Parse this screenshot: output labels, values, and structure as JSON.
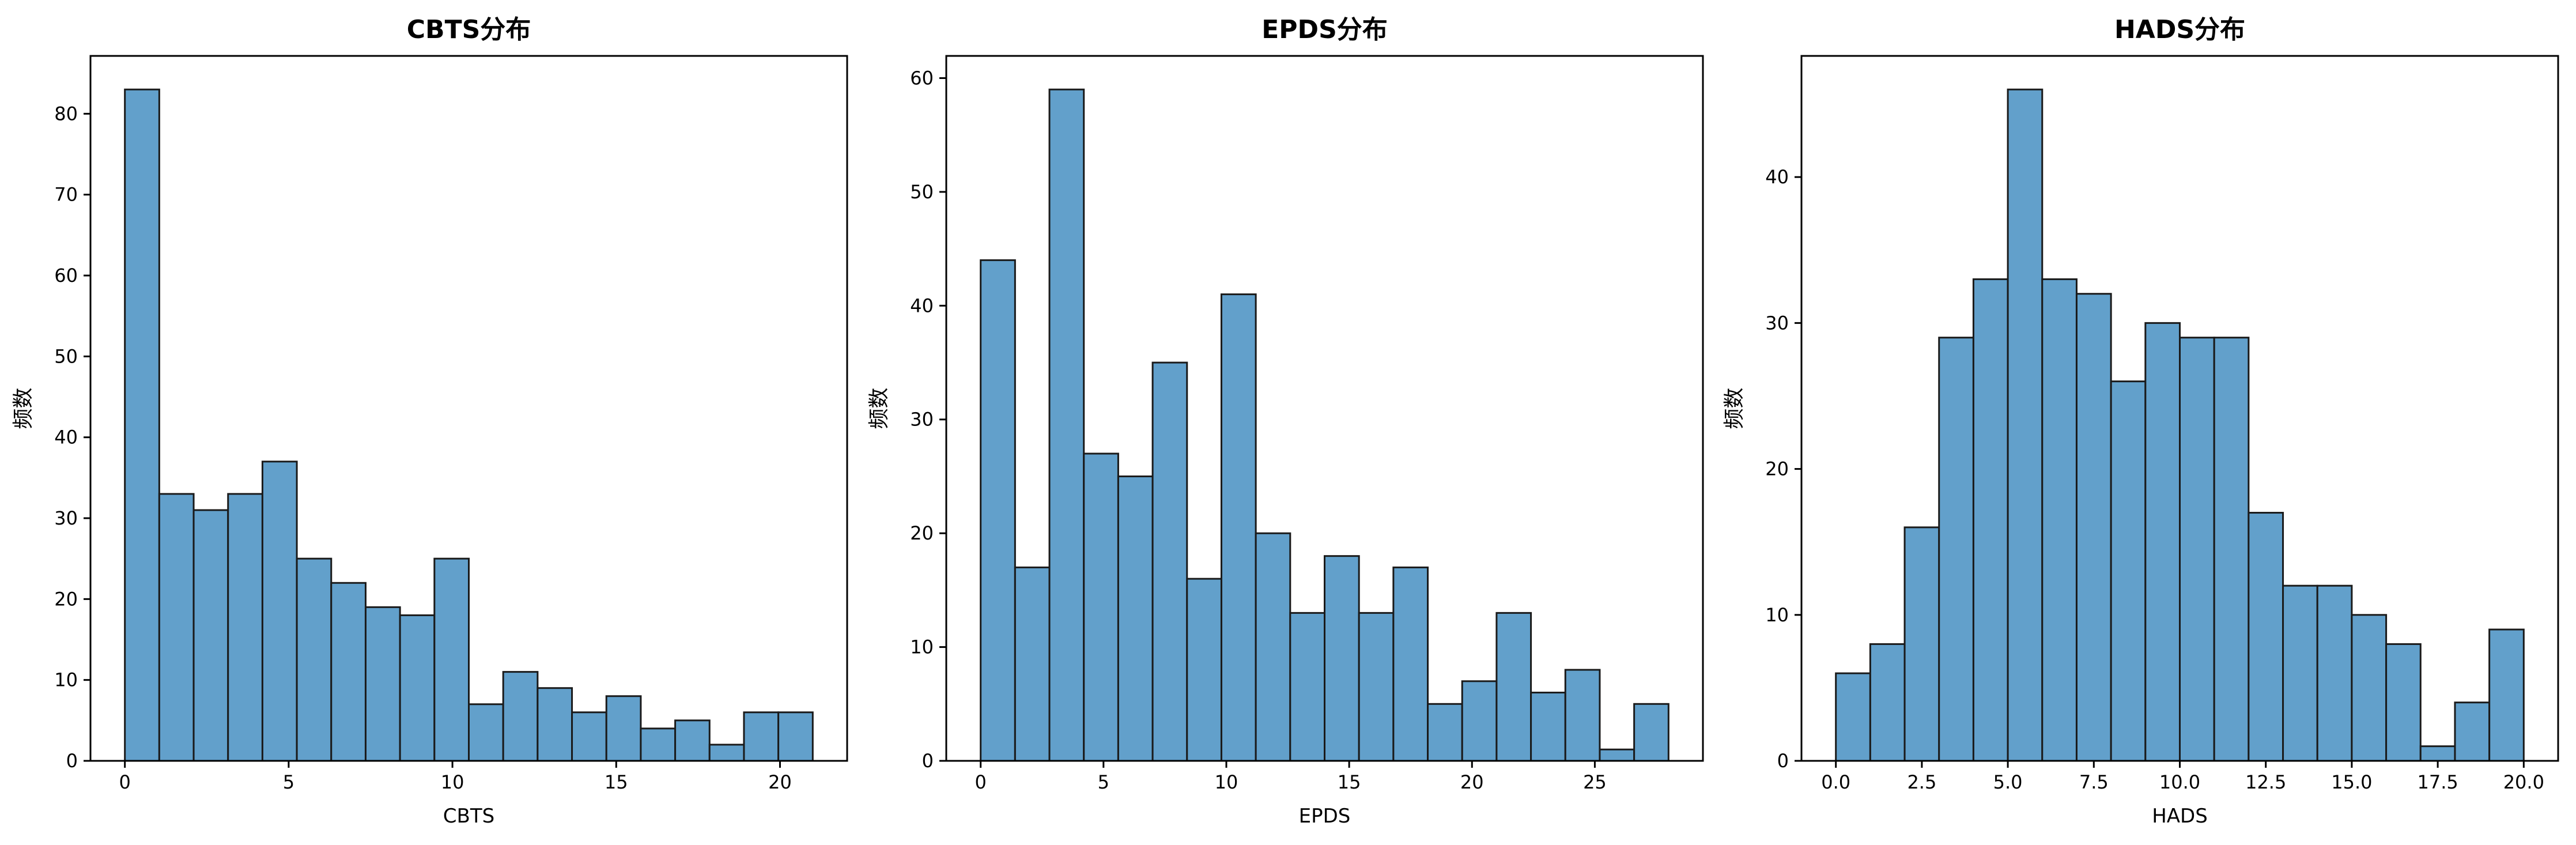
{
  "colors": {
    "bar": "#62a0cb",
    "edge": "#1a1a1a"
  },
  "chart_data": [
    {
      "type": "bar",
      "title": "CBTS分布",
      "xlabel": "CBTS",
      "ylabel": "频数",
      "bin_edges": [
        0,
        1.05,
        2.1,
        3.15,
        4.2,
        5.25,
        6.3,
        7.35,
        8.4,
        9.45,
        10.5,
        11.55,
        12.6,
        13.65,
        14.7,
        15.75,
        16.8,
        17.85,
        18.9,
        19.95,
        21
      ],
      "values": [
        83,
        33,
        31,
        33,
        37,
        25,
        22,
        19,
        18,
        25,
        7,
        11,
        9,
        6,
        8,
        4,
        5,
        2,
        6,
        6
      ],
      "xlim": [
        -1.05,
        22.05
      ],
      "ylim": [
        0,
        87.15
      ],
      "xticks": [
        0,
        5,
        10,
        15,
        20
      ],
      "xticklabels": [
        "0",
        "5",
        "10",
        "15",
        "20"
      ],
      "yticks": [
        0,
        10,
        20,
        30,
        40,
        50,
        60,
        70,
        80
      ],
      "yticklabels": [
        "0",
        "10",
        "20",
        "30",
        "40",
        "50",
        "60",
        "70",
        "80"
      ]
    },
    {
      "type": "bar",
      "title": "EPDS分布",
      "xlabel": "EPDS",
      "ylabel": "频数",
      "bin_edges": [
        0,
        1.4,
        2.8,
        4.2,
        5.6,
        7,
        8.4,
        9.8,
        11.2,
        12.6,
        14,
        15.4,
        16.8,
        18.2,
        19.6,
        21,
        22.4,
        23.8,
        25.2,
        26.6,
        28
      ],
      "values": [
        44,
        17,
        59,
        27,
        25,
        35,
        16,
        41,
        20,
        13,
        18,
        13,
        17,
        5,
        7,
        13,
        6,
        8,
        1,
        5
      ],
      "xlim": [
        -1.4,
        29.4
      ],
      "ylim": [
        0,
        61.95
      ],
      "xticks": [
        0,
        5,
        10,
        15,
        20,
        25
      ],
      "xticklabels": [
        "0",
        "5",
        "10",
        "15",
        "20",
        "25"
      ],
      "yticks": [
        0,
        10,
        20,
        30,
        40,
        50,
        60
      ],
      "yticklabels": [
        "0",
        "10",
        "20",
        "30",
        "40",
        "50",
        "60"
      ]
    },
    {
      "type": "bar",
      "title": "HADS分布",
      "xlabel": "HADS",
      "ylabel": "频数",
      "bin_edges": [
        0,
        1,
        2,
        3,
        4,
        5,
        6,
        7,
        8,
        9,
        10,
        11,
        12,
        13,
        14,
        15,
        16,
        17,
        18,
        19,
        20
      ],
      "values": [
        6,
        8,
        16,
        29,
        33,
        46,
        33,
        32,
        26,
        30,
        29,
        29,
        17,
        12,
        12,
        10,
        8,
        1,
        4,
        9
      ],
      "xlim": [
        -1,
        21
      ],
      "ylim": [
        0,
        48.3
      ],
      "xticks": [
        0,
        2.5,
        5,
        7.5,
        10,
        12.5,
        15,
        17.5,
        20
      ],
      "xticklabels": [
        "0.0",
        "2.5",
        "5.0",
        "7.5",
        "10.0",
        "12.5",
        "15.0",
        "17.5",
        "20.0"
      ],
      "yticks": [
        0,
        10,
        20,
        30,
        40
      ],
      "yticklabels": [
        "0",
        "10",
        "20",
        "30",
        "40"
      ]
    }
  ]
}
